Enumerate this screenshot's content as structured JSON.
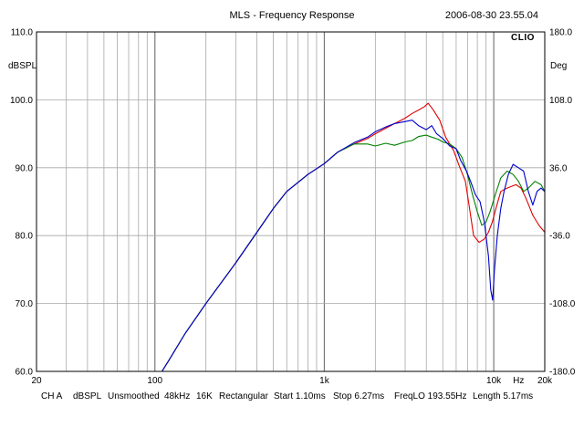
{
  "chart_data": {
    "type": "line",
    "title": "MLS - Frequency Response",
    "timestamp": "2006-08-30 23.55.04",
    "logo": "CLIO",
    "ylabel": "dBSPL",
    "y2label": "Deg",
    "xscale": "log",
    "xlim": [
      20,
      20000
    ],
    "ylim": [
      60,
      110
    ],
    "y2lim": [
      -180,
      180
    ],
    "grid": true,
    "x_ticks": [
      {
        "value": 20,
        "label": "20"
      },
      {
        "value": 100,
        "label": "100"
      },
      {
        "value": 1000,
        "label": "1k"
      },
      {
        "value": 10000,
        "label": "10k"
      },
      {
        "value": 14000,
        "label": "Hz"
      },
      {
        "value": 20000,
        "label": "20k"
      }
    ],
    "y_ticks": [
      {
        "value": 60,
        "label": "60.0"
      },
      {
        "value": 70,
        "label": "70.0"
      },
      {
        "value": 80,
        "label": "80.0"
      },
      {
        "value": 90,
        "label": "90.0"
      },
      {
        "value": 100,
        "label": "100.0"
      },
      {
        "value": 110,
        "label": "110.0"
      }
    ],
    "y2_ticks": [
      {
        "value": -180,
        "label": "-180.0"
      },
      {
        "value": -108,
        "label": "-108.0"
      },
      {
        "value": -36,
        "label": "-36.0"
      },
      {
        "value": 36,
        "label": "36.0"
      },
      {
        "value": 108,
        "label": "108.0"
      },
      {
        "value": 180,
        "label": "180.0"
      }
    ],
    "series": [
      {
        "color": "#e00000",
        "points": [
          [
            20,
            60
          ],
          [
            110,
            60
          ],
          [
            120,
            61.5
          ],
          [
            150,
            65.5
          ],
          [
            200,
            70
          ],
          [
            300,
            76
          ],
          [
            400,
            80.5
          ],
          [
            500,
            84
          ],
          [
            600,
            86.5
          ],
          [
            800,
            89
          ],
          [
            1000,
            90.6
          ],
          [
            1200,
            92.3
          ],
          [
            1500,
            93.5
          ],
          [
            1800,
            94.3
          ],
          [
            2000,
            95
          ],
          [
            2300,
            95.8
          ],
          [
            2600,
            96.5
          ],
          [
            3000,
            97.3
          ],
          [
            3300,
            98
          ],
          [
            3600,
            98.5
          ],
          [
            3900,
            99
          ],
          [
            4100,
            99.5
          ],
          [
            4400,
            98.5
          ],
          [
            4800,
            97
          ],
          [
            5200,
            94.5
          ],
          [
            5800,
            92.5
          ],
          [
            6200,
            90.5
          ],
          [
            6800,
            88
          ],
          [
            7200,
            84
          ],
          [
            7600,
            80
          ],
          [
            8200,
            79
          ],
          [
            8800,
            79.5
          ],
          [
            9300,
            80.5
          ],
          [
            9800,
            82
          ],
          [
            10300,
            84
          ],
          [
            11000,
            86.5
          ],
          [
            12000,
            87
          ],
          [
            13500,
            87.5
          ],
          [
            14500,
            87
          ],
          [
            15500,
            85.5
          ],
          [
            17000,
            83
          ],
          [
            18500,
            81.5
          ],
          [
            20000,
            80.5
          ]
        ]
      },
      {
        "color": "#008000",
        "points": [
          [
            20,
            60
          ],
          [
            110,
            60
          ],
          [
            120,
            61.5
          ],
          [
            150,
            65.5
          ],
          [
            200,
            70
          ],
          [
            300,
            76
          ],
          [
            400,
            80.5
          ],
          [
            500,
            84
          ],
          [
            600,
            86.5
          ],
          [
            800,
            89
          ],
          [
            1000,
            90.6
          ],
          [
            1200,
            92.3
          ],
          [
            1500,
            93.5
          ],
          [
            1800,
            93.5
          ],
          [
            2000,
            93.2
          ],
          [
            2300,
            93.6
          ],
          [
            2600,
            93.3
          ],
          [
            3000,
            93.8
          ],
          [
            3300,
            94
          ],
          [
            3600,
            94.6
          ],
          [
            4000,
            94.8
          ],
          [
            4300,
            94.5
          ],
          [
            4700,
            94.2
          ],
          [
            5000,
            93.8
          ],
          [
            5500,
            93.5
          ],
          [
            6000,
            92.8
          ],
          [
            6500,
            91.5
          ],
          [
            7000,
            89
          ],
          [
            7500,
            86
          ],
          [
            8000,
            83.5
          ],
          [
            8500,
            81.5
          ],
          [
            9000,
            82
          ],
          [
            9500,
            83.5
          ],
          [
            10200,
            86
          ],
          [
            11000,
            88.5
          ],
          [
            12000,
            89.5
          ],
          [
            13000,
            89
          ],
          [
            14000,
            88
          ],
          [
            15000,
            86.5
          ],
          [
            16000,
            87
          ],
          [
            17500,
            88
          ],
          [
            19000,
            87.5
          ],
          [
            20000,
            86.5
          ]
        ]
      },
      {
        "color": "#0000cc",
        "points": [
          [
            20,
            60
          ],
          [
            110,
            60
          ],
          [
            120,
            61.5
          ],
          [
            150,
            65.5
          ],
          [
            200,
            70
          ],
          [
            300,
            76
          ],
          [
            400,
            80.5
          ],
          [
            500,
            84
          ],
          [
            600,
            86.5
          ],
          [
            800,
            89
          ],
          [
            1000,
            90.6
          ],
          [
            1200,
            92.3
          ],
          [
            1500,
            93.7
          ],
          [
            1800,
            94.5
          ],
          [
            2000,
            95.3
          ],
          [
            2300,
            96
          ],
          [
            2600,
            96.5
          ],
          [
            3000,
            96.8
          ],
          [
            3300,
            97
          ],
          [
            3600,
            96.2
          ],
          [
            4000,
            95.6
          ],
          [
            4300,
            96.2
          ],
          [
            4600,
            95
          ],
          [
            5000,
            94.3
          ],
          [
            5500,
            93.2
          ],
          [
            6000,
            92.8
          ],
          [
            6400,
            91
          ],
          [
            6900,
            89.5
          ],
          [
            7300,
            88
          ],
          [
            7800,
            86
          ],
          [
            8300,
            85
          ],
          [
            8800,
            82
          ],
          [
            9300,
            77
          ],
          [
            9600,
            72
          ],
          [
            9850,
            70.5
          ],
          [
            10100,
            75
          ],
          [
            10500,
            80
          ],
          [
            11000,
            84
          ],
          [
            11500,
            86.5
          ],
          [
            12200,
            89
          ],
          [
            13000,
            90.5
          ],
          [
            14000,
            90
          ],
          [
            15000,
            89.5
          ],
          [
            16000,
            86.5
          ],
          [
            17000,
            84.5
          ],
          [
            18000,
            86.5
          ],
          [
            19000,
            87
          ],
          [
            20000,
            86.5
          ]
        ]
      }
    ],
    "footer": {
      "channel": "CH A",
      "units": "dBSPL",
      "smoothing": "Unsmoothed",
      "sample_rate": "48kHz",
      "size": "16K",
      "window": "Rectangular",
      "start": "Start 1.10ms",
      "stop": "Stop 6.27ms",
      "freqlo": "FreqLO 193.55Hz",
      "length": "Length 5.17ms"
    }
  }
}
